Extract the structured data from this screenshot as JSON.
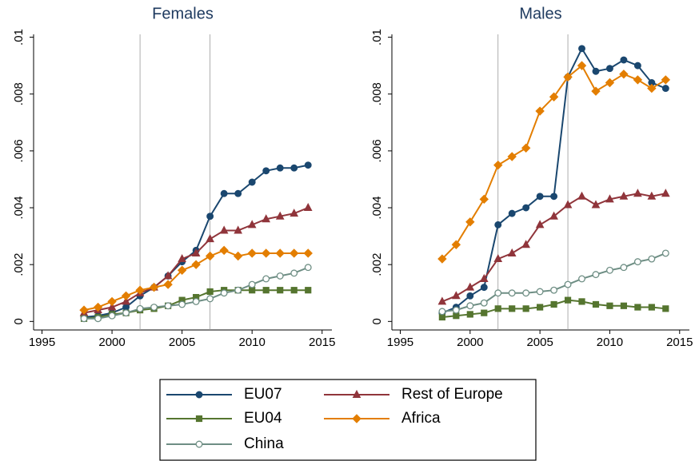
{
  "chart_data": [
    {
      "type": "line",
      "title": "Females",
      "x": [
        1998,
        1999,
        2000,
        2001,
        2002,
        2003,
        2004,
        2005,
        2006,
        2007,
        2008,
        2009,
        2010,
        2011,
        2012,
        2013,
        2014
      ],
      "xlim": [
        1994.4,
        2015.7
      ],
      "xticks": [
        1995,
        2000,
        2005,
        2010,
        2015
      ],
      "ylim": [
        -0.0003,
        0.0101
      ],
      "yticks": [
        0,
        {
          "value": 0.002,
          "label": ".002"
        },
        {
          "value": 0.004,
          "label": ".004"
        },
        {
          "value": 0.006,
          "label": ".006"
        },
        {
          "value": 0.008,
          "label": ".008"
        },
        {
          "value": 0.01,
          "label": ".01"
        }
      ],
      "vlines": [
        2002,
        2007
      ],
      "series": [
        {
          "name": "EU07",
          "color": "#1a476f",
          "marker": "circle",
          "values": [
            0.00015,
            0.0002,
            0.0003,
            0.0005,
            0.0009,
            0.0012,
            0.0016,
            0.0021,
            0.0025,
            0.0037,
            0.0045,
            0.0045,
            0.0049,
            0.0053,
            0.0054,
            0.0054,
            0.0055
          ]
        },
        {
          "name": "Rest of Europe",
          "color": "#90353b",
          "marker": "triangle",
          "values": [
            0.0003,
            0.0004,
            0.0005,
            0.0007,
            0.001,
            0.0012,
            0.0016,
            0.0022,
            0.0024,
            0.0029,
            0.0032,
            0.0032,
            0.0034,
            0.0036,
            0.0037,
            0.0038,
            0.004
          ]
        },
        {
          "name": "EU04",
          "color": "#55752f",
          "marker": "square",
          "values": [
            0.0001,
            0.00015,
            0.00025,
            0.0003,
            0.0004,
            0.00045,
            0.00055,
            0.00075,
            0.00085,
            0.00105,
            0.0011,
            0.0011,
            0.0011,
            0.0011,
            0.0011,
            0.0011,
            0.0011
          ]
        },
        {
          "name": "Africa",
          "color": "#e37e00",
          "marker": "diamond",
          "values": [
            0.0004,
            0.0005,
            0.0007,
            0.0009,
            0.0011,
            0.0012,
            0.0013,
            0.0018,
            0.002,
            0.0023,
            0.0025,
            0.0023,
            0.0024,
            0.0024,
            0.0024,
            0.0024,
            0.0024
          ]
        },
        {
          "name": "China",
          "color": "#6e8e84",
          "marker": "hollow-circle",
          "values": [
            0.0001,
            0.0001,
            0.0002,
            0.0003,
            0.00045,
            0.0005,
            0.00055,
            0.0006,
            0.0007,
            0.0008,
            0.001,
            0.0011,
            0.0013,
            0.0015,
            0.0016,
            0.0017,
            0.0019
          ]
        }
      ]
    },
    {
      "type": "line",
      "title": "Males",
      "x": [
        1998,
        1999,
        2000,
        2001,
        2002,
        2003,
        2004,
        2005,
        2006,
        2007,
        2008,
        2009,
        2010,
        2011,
        2012,
        2013,
        2014
      ],
      "xlim": [
        1994.4,
        2015.7
      ],
      "xticks": [
        1995,
        2000,
        2005,
        2010,
        2015
      ],
      "ylim": [
        -0.0003,
        0.0101
      ],
      "yticks": [
        0,
        {
          "value": 0.002,
          "label": ".002"
        },
        {
          "value": 0.004,
          "label": ".004"
        },
        {
          "value": 0.006,
          "label": ".006"
        },
        {
          "value": 0.008,
          "label": ".008"
        },
        {
          "value": 0.01,
          "label": ".01"
        }
      ],
      "vlines": [
        2002,
        2007
      ],
      "series": [
        {
          "name": "EU07",
          "color": "#1a476f",
          "marker": "circle",
          "values": [
            0.0003,
            0.0005,
            0.0009,
            0.0012,
            0.0034,
            0.0038,
            0.004,
            0.0044,
            0.0044,
            0.0086,
            0.0096,
            0.0088,
            0.0089,
            0.0092,
            0.009,
            0.0084,
            0.0082
          ]
        },
        {
          "name": "Rest of Europe",
          "color": "#90353b",
          "marker": "triangle",
          "values": [
            0.0007,
            0.0009,
            0.0012,
            0.0015,
            0.0022,
            0.0024,
            0.0027,
            0.0034,
            0.0037,
            0.0041,
            0.0044,
            0.0041,
            0.0043,
            0.0044,
            0.0045,
            0.0044,
            0.0045
          ]
        },
        {
          "name": "EU04",
          "color": "#55752f",
          "marker": "square",
          "values": [
            0.00015,
            0.0002,
            0.00025,
            0.0003,
            0.00045,
            0.00045,
            0.00045,
            0.0005,
            0.0006,
            0.00075,
            0.0007,
            0.0006,
            0.00055,
            0.00055,
            0.0005,
            0.0005,
            0.00045
          ]
        },
        {
          "name": "Africa",
          "color": "#e37e00",
          "marker": "diamond",
          "values": [
            0.0022,
            0.0027,
            0.0035,
            0.0043,
            0.0055,
            0.0058,
            0.0061,
            0.0074,
            0.0079,
            0.0086,
            0.009,
            0.0081,
            0.0084,
            0.0087,
            0.0085,
            0.0082,
            0.0085
          ]
        },
        {
          "name": "China",
          "color": "#6e8e84",
          "marker": "hollow-circle",
          "values": [
            0.00035,
            0.0004,
            0.00055,
            0.00065,
            0.001,
            0.001,
            0.001,
            0.00105,
            0.0011,
            0.0013,
            0.0015,
            0.00165,
            0.0018,
            0.0019,
            0.0021,
            0.0022,
            0.0024
          ]
        }
      ]
    }
  ]
}
